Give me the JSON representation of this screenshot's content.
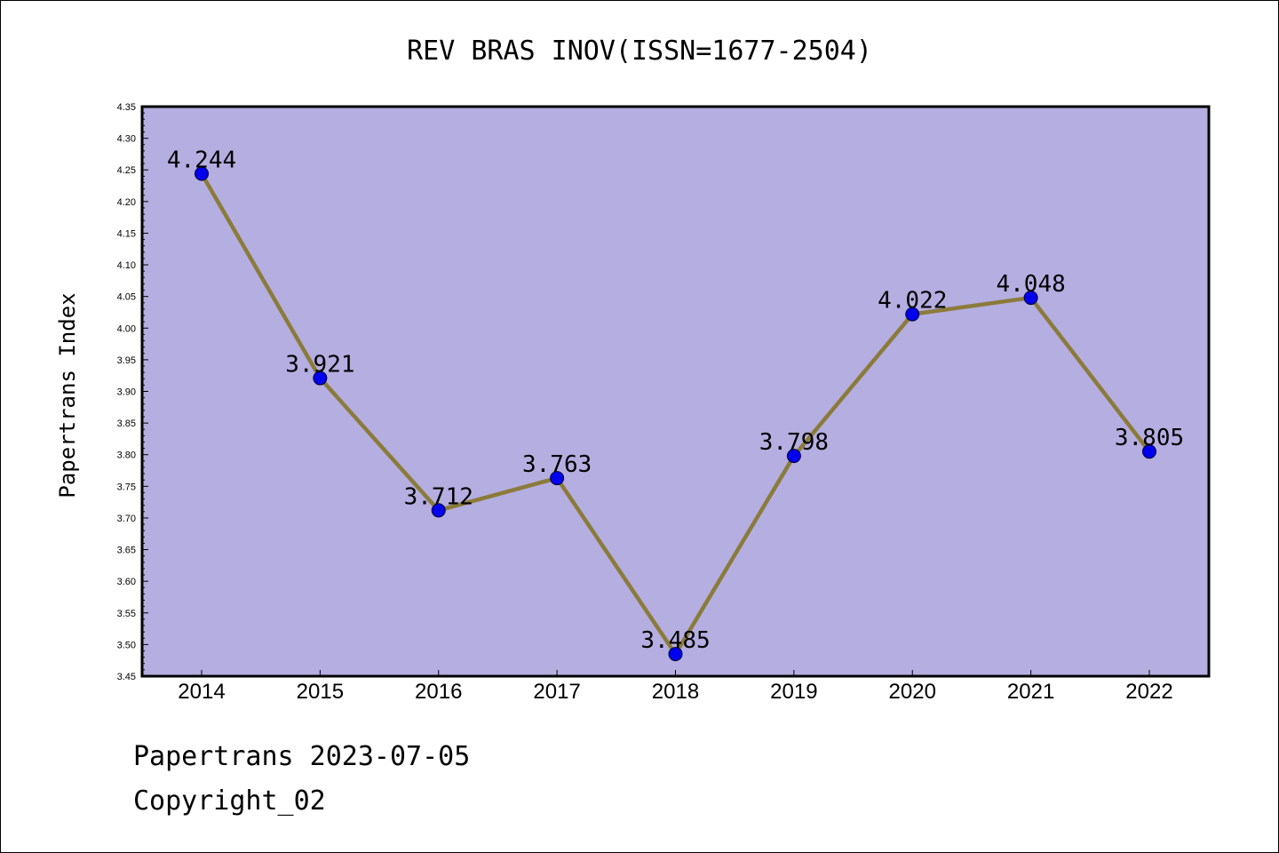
{
  "chart_data": {
    "type": "line",
    "title": "REV BRAS INOV(ISSN=1677-2504)",
    "xlabel": "",
    "ylabel": "Papertrans Index",
    "categories": [
      "2014",
      "2015",
      "2016",
      "2017",
      "2018",
      "2019",
      "2020",
      "2021",
      "2022"
    ],
    "series": [
      {
        "values": [
          4.244,
          3.921,
          3.712,
          3.763,
          3.485,
          3.798,
          4.022,
          4.048,
          3.805
        ],
        "labels": [
          "4.244",
          "3.921",
          "3.712",
          "3.763",
          "3.485",
          "3.798",
          "4.022",
          "4.048",
          "3.805"
        ]
      }
    ],
    "ylim": [
      3.45,
      4.35
    ],
    "yticks": [
      "3.45",
      "3.50",
      "3.55",
      "3.60",
      "3.65",
      "3.70",
      "3.75",
      "3.80",
      "3.85",
      "3.90",
      "3.95",
      "4.00",
      "4.05",
      "4.10",
      "4.15",
      "4.20",
      "4.25",
      "4.30",
      "4.35"
    ],
    "grid": false,
    "colors": {
      "plot_background": "#b5aee1",
      "line": "#8b7b3a",
      "marker": "#0000ee"
    }
  },
  "footer": {
    "line1": "Papertrans 2023-07-05",
    "line2": "Copyright_02"
  }
}
